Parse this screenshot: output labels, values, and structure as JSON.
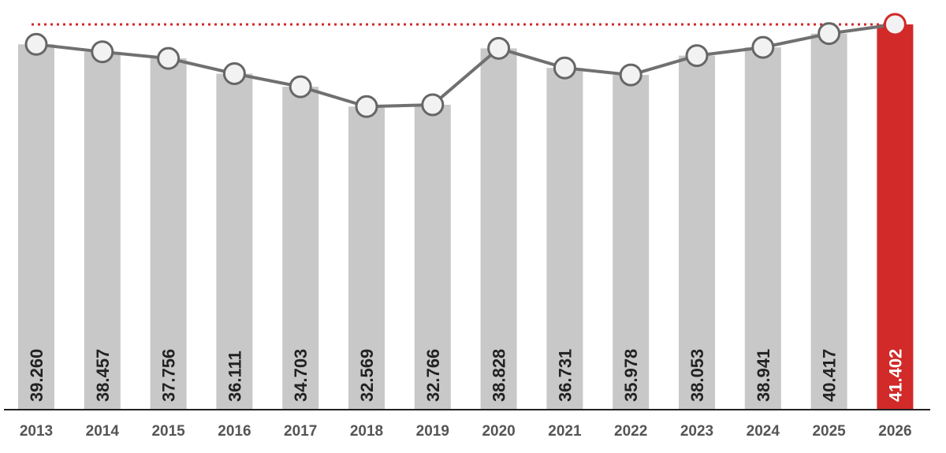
{
  "chart_data": {
    "type": "bar",
    "categories": [
      "2013",
      "2014",
      "2015",
      "2016",
      "2017",
      "2018",
      "2019",
      "2020",
      "2021",
      "2022",
      "2023",
      "2024",
      "2025",
      "2026"
    ],
    "values": [
      39.26,
      38.457,
      37.756,
      36.111,
      34.703,
      32.569,
      32.766,
      38.828,
      36.731,
      35.978,
      38.053,
      38.941,
      40.417,
      41.402
    ],
    "value_labels": [
      "39.260",
      "38.457",
      "37.756",
      "36.111",
      "34.703",
      "32.569",
      "32.766",
      "38.828",
      "36.731",
      "35.978",
      "38.053",
      "38.941",
      "40.417",
      "41.402"
    ],
    "line_overlay": true,
    "reference_line": {
      "value": 41.402,
      "style": "dotted"
    },
    "highlight_index": 13,
    "title": "",
    "xlabel": "",
    "ylabel": "",
    "ylim": [
      0,
      42
    ],
    "grid": false,
    "legend": "none",
    "colors": {
      "bar": "#c8c8c8",
      "highlight_bar": "#d12a28",
      "line": "#707070",
      "marker_fill": "#f2f2f2",
      "marker_stroke": "#666666",
      "highlight_marker_stroke": "#d12a28",
      "reference_line": "#d12a28",
      "axis": "#222222",
      "label_dark": "#222222",
      "label_light": "#ffffff"
    }
  }
}
